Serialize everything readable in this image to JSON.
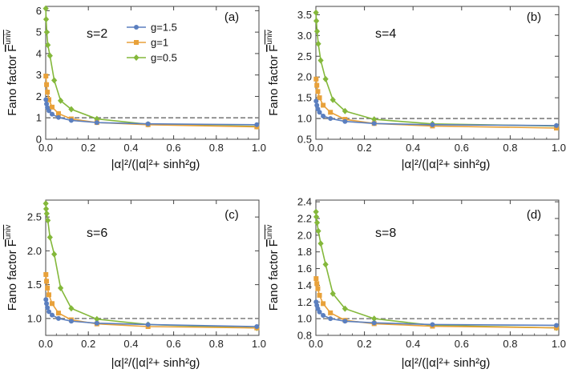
{
  "colors": {
    "g=1.5": "#5b7fbf",
    "g=1": "#e8a13a",
    "g=0.5": "#84b83b",
    "reference_line": "#7f7f7f",
    "frame": "#444444"
  },
  "markers": {
    "g=1.5": "circle",
    "g=1": "square",
    "g=0.5": "diamond"
  },
  "legend": {
    "panel": "a",
    "placement": "top-center of panel (a)",
    "entries": [
      "g=1.5",
      "g=1",
      "g=0.5"
    ]
  },
  "chart_data": [
    {
      "type": "line",
      "panel": "(a)",
      "annotation": "s=2",
      "ylabel_text": "Fano factor ",
      "ylabel_symbol": "F",
      "ylabel_superscript": "univ",
      "xlabel": "|α|²/(|α|²+ sinh²g)",
      "xlim": [
        0,
        1.0
      ],
      "ylim": [
        0,
        6.2
      ],
      "xticks": [
        "0.0",
        "0.2",
        "0.4",
        "0.6",
        "0.8",
        "1.0"
      ],
      "yticks": [
        "0",
        "1",
        "2",
        "3",
        "4",
        "5",
        "6"
      ],
      "reference_line_y": 1,
      "series": [
        {
          "name": "g=1.5",
          "x": [
            0.001,
            0.004,
            0.008,
            0.015,
            0.03,
            0.06,
            0.12,
            0.24,
            0.48,
            0.99
          ],
          "y": [
            1.85,
            1.65,
            1.48,
            1.33,
            1.17,
            1.02,
            0.88,
            0.78,
            0.72,
            0.68
          ]
        },
        {
          "name": "g=1",
          "x": [
            0.001,
            0.004,
            0.008,
            0.015,
            0.03,
            0.06,
            0.12,
            0.24,
            0.48,
            0.99
          ],
          "y": [
            2.95,
            2.55,
            2.2,
            1.85,
            1.5,
            1.2,
            0.95,
            0.78,
            0.68,
            0.58
          ]
        },
        {
          "name": "g=0.5",
          "x": [
            0.0005,
            0.002,
            0.005,
            0.01,
            0.02,
            0.04,
            0.07,
            0.12,
            0.24,
            0.48,
            0.99
          ],
          "y": [
            6.1,
            5.6,
            5.0,
            4.4,
            3.9,
            2.75,
            1.8,
            1.4,
            0.95,
            0.7,
            0.6
          ]
        }
      ]
    },
    {
      "type": "line",
      "panel": "(b)",
      "annotation": "s=4",
      "ylabel_text": "Fano factor ",
      "ylabel_symbol": "F",
      "ylabel_superscript": "univ",
      "xlabel": "|α|²/(|α|²+ sinh²g)",
      "xlim": [
        0,
        1.0
      ],
      "ylim": [
        0.5,
        3.7
      ],
      "xticks": [
        "0.0",
        "0.2",
        "0.4",
        "0.6",
        "0.8",
        "1.0"
      ],
      "yticks": [
        "0.5",
        "1.0",
        "1.5",
        "2.0",
        "2.5",
        "3.0",
        "3.5"
      ],
      "reference_line_y": 1.0,
      "series": [
        {
          "name": "g=1.5",
          "x": [
            0.001,
            0.004,
            0.008,
            0.015,
            0.03,
            0.06,
            0.12,
            0.24,
            0.48,
            0.99
          ],
          "y": [
            1.42,
            1.32,
            1.23,
            1.15,
            1.06,
            1.0,
            0.93,
            0.88,
            0.85,
            0.83
          ]
        },
        {
          "name": "g=1",
          "x": [
            0.001,
            0.004,
            0.008,
            0.015,
            0.03,
            0.06,
            0.12,
            0.24,
            0.48,
            0.99
          ],
          "y": [
            1.95,
            1.8,
            1.65,
            1.5,
            1.32,
            1.15,
            0.98,
            0.88,
            0.82,
            0.77
          ]
        },
        {
          "name": "g=0.5",
          "x": [
            0.0005,
            0.002,
            0.005,
            0.01,
            0.02,
            0.04,
            0.07,
            0.12,
            0.24,
            0.48,
            0.99
          ],
          "y": [
            3.55,
            3.35,
            3.1,
            2.8,
            2.4,
            1.95,
            1.45,
            1.18,
            0.98,
            0.87,
            0.82
          ]
        }
      ]
    },
    {
      "type": "line",
      "panel": "(c)",
      "annotation": "s=6",
      "ylabel_text": "Fano factor ",
      "ylabel_symbol": "F",
      "ylabel_superscript": "univ",
      "xlabel": "|α|²/(|α|²+ sinh²g)",
      "xlim": [
        0,
        1.0
      ],
      "ylim": [
        0.75,
        2.75
      ],
      "xticks": [
        "0.0",
        "0.2",
        "0.4",
        "0.6",
        "0.8",
        "1.0"
      ],
      "yticks": [
        "1.0",
        "1.5",
        "2.0",
        "2.5"
      ],
      "reference_line_y": 1.0,
      "series": [
        {
          "name": "g=1.5",
          "x": [
            0.001,
            0.004,
            0.008,
            0.015,
            0.03,
            0.06,
            0.12,
            0.24,
            0.48,
            0.99
          ],
          "y": [
            1.28,
            1.22,
            1.16,
            1.1,
            1.05,
            1.0,
            0.96,
            0.93,
            0.91,
            0.88
          ]
        },
        {
          "name": "g=1",
          "x": [
            0.001,
            0.004,
            0.008,
            0.015,
            0.03,
            0.06,
            0.12,
            0.24,
            0.48,
            0.99
          ],
          "y": [
            1.65,
            1.55,
            1.45,
            1.35,
            1.22,
            1.08,
            0.98,
            0.92,
            0.88,
            0.86
          ]
        },
        {
          "name": "g=0.5",
          "x": [
            0.0005,
            0.002,
            0.005,
            0.01,
            0.02,
            0.04,
            0.07,
            0.12,
            0.24,
            0.48,
            0.99
          ],
          "y": [
            2.7,
            2.62,
            2.55,
            2.45,
            2.2,
            1.95,
            1.45,
            1.15,
            0.99,
            0.91,
            0.86
          ]
        }
      ]
    },
    {
      "type": "line",
      "panel": "(d)",
      "annotation": "s=8",
      "ylabel_text": "Fano factor ",
      "ylabel_symbol": "F",
      "ylabel_superscript": "univ",
      "xlabel": "|α|²/(|α|²+ sinh²g)",
      "xlim": [
        0,
        1.0
      ],
      "ylim": [
        0.8,
        2.42
      ],
      "xticks": [
        "0.0",
        "0.2",
        "0.4",
        "0.6",
        "0.8",
        "1.0"
      ],
      "yticks": [
        "0.8",
        "1.0",
        "1.2",
        "1.4",
        "1.6",
        "1.8",
        "2.0",
        "2.2",
        "2.4"
      ],
      "reference_line_y": 1.0,
      "series": [
        {
          "name": "g=1.5",
          "x": [
            0.001,
            0.004,
            0.008,
            0.015,
            0.03,
            0.06,
            0.12,
            0.24,
            0.48,
            0.99
          ],
          "y": [
            1.2,
            1.16,
            1.12,
            1.08,
            1.04,
            1.0,
            0.97,
            0.95,
            0.93,
            0.92
          ]
        },
        {
          "name": "g=1",
          "x": [
            0.001,
            0.004,
            0.008,
            0.015,
            0.03,
            0.06,
            0.12,
            0.24,
            0.48,
            0.99
          ],
          "y": [
            1.48,
            1.42,
            1.36,
            1.28,
            1.18,
            1.07,
            0.98,
            0.94,
            0.91,
            0.89
          ]
        },
        {
          "name": "g=0.5",
          "x": [
            0.0005,
            0.002,
            0.005,
            0.01,
            0.02,
            0.04,
            0.07,
            0.12,
            0.24,
            0.48,
            0.99
          ],
          "y": [
            2.28,
            2.22,
            2.15,
            2.05,
            1.9,
            1.65,
            1.3,
            1.12,
            1.0,
            0.92,
            0.89
          ]
        }
      ]
    }
  ]
}
